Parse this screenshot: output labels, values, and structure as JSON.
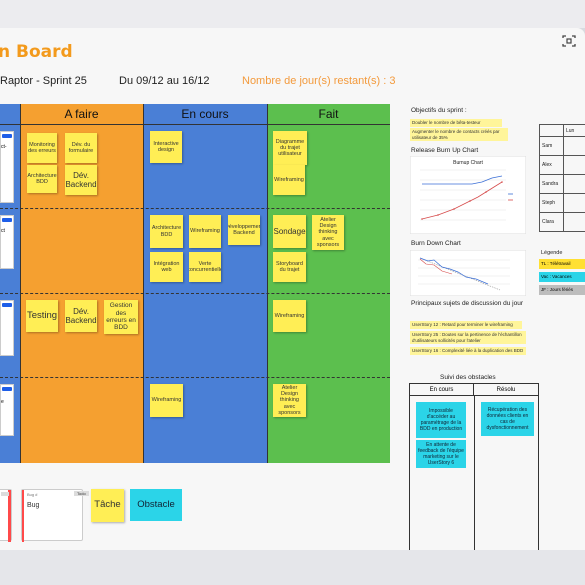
{
  "header": {
    "title": "n Board",
    "project": "Raptor - Sprint 25",
    "dates": "Du 09/12 au 16/12",
    "remaining": "Nombre de jour(s) restant(s) : 3"
  },
  "columns": {
    "todo": "A faire",
    "in_progress": "En cours",
    "done": "Fait"
  },
  "left_cards": [
    "ct-",
    "ct",
    "",
    "e"
  ],
  "lane1": {
    "todo": [
      "Monitoring des erreurs",
      "Dév. du formulaire",
      "Architecture BDD",
      "Dév. Backend"
    ],
    "in_progress": [
      "Interactive design"
    ],
    "done": [
      "Diagramme du trajet utilisateur",
      "Wireframing"
    ]
  },
  "lane2": {
    "in_progress": [
      "Architecture BDD",
      "Wireframing",
      "Développement Backend",
      "Intégration web",
      "Verte concurrentielle"
    ],
    "done": [
      "Sondage",
      "Atelier Design thinking avec sponsors",
      "Storyboard du trajet"
    ]
  },
  "lane3": {
    "todo": [
      "Testing",
      "Dév. Backend",
      "Gestion des erreurs en BDD"
    ],
    "done": [
      "Wireframing"
    ]
  },
  "lane4": {
    "in_progress": [
      "Wireframing"
    ],
    "done": [
      "Atelier Design thinking avec sponsors"
    ]
  },
  "legend_cards": {
    "bug_header": "Bug #",
    "bug_badge": "Todo",
    "bug_label": "Bug",
    "task": "Tâche",
    "obstacle": "Obstacle"
  },
  "right_panel": {
    "objectives_title": "Objectifs du sprint :",
    "objective_1": "Doubler le nombre de bêta-testeur",
    "objective_2": "Augmenter le nombre de contacts créés par utilisateur de 35%",
    "burnup_title": "Release Burn Up Chart",
    "burnup_chart_title": "Burnup Chart",
    "burndown_title": "Burn Down Chart",
    "discussion_title": "Principaux sujets de discussion du jour",
    "discussion": [
      "UserStory 12 : Retard pour terminer le wireframing",
      "UserStory 25 : Doutes sur la pertinence de l'échantillon d'utilisateurs sollicités pour l'atelier",
      "UserStory 16 : Complexité liée à la duplication des BDD"
    ],
    "obstacles_title": "Suivi des obstacles",
    "obstacles_cols": [
      "En cours",
      "Résolu"
    ],
    "obstacle_open": [
      "Impossible d'accéder au paramétrage de la BDD en production",
      "En attente de feedback de l'équipe marketing sur le UserStory 6"
    ],
    "obstacle_resolved": [
      "Récupération des données clients en cas de dysfonctionnement"
    ]
  },
  "availability": {
    "day_col": "Lun",
    "people": [
      "Sam",
      "Alex",
      "Sandra",
      "Steph",
      "Clara"
    ],
    "legend_title": "Légende",
    "legend": [
      "TL : Télétravail",
      "Vac : Vacances",
      "JF : Jours fériés"
    ],
    "legend_colors": [
      "#ffe033",
      "#2bd4e8",
      "#bdbdbd"
    ]
  },
  "colors": {
    "todo": "#f5a030",
    "in_progress": "#4a7fd6",
    "done": "#5cbf4e",
    "sticky": "#ffee55",
    "title": "#f39a1c"
  }
}
